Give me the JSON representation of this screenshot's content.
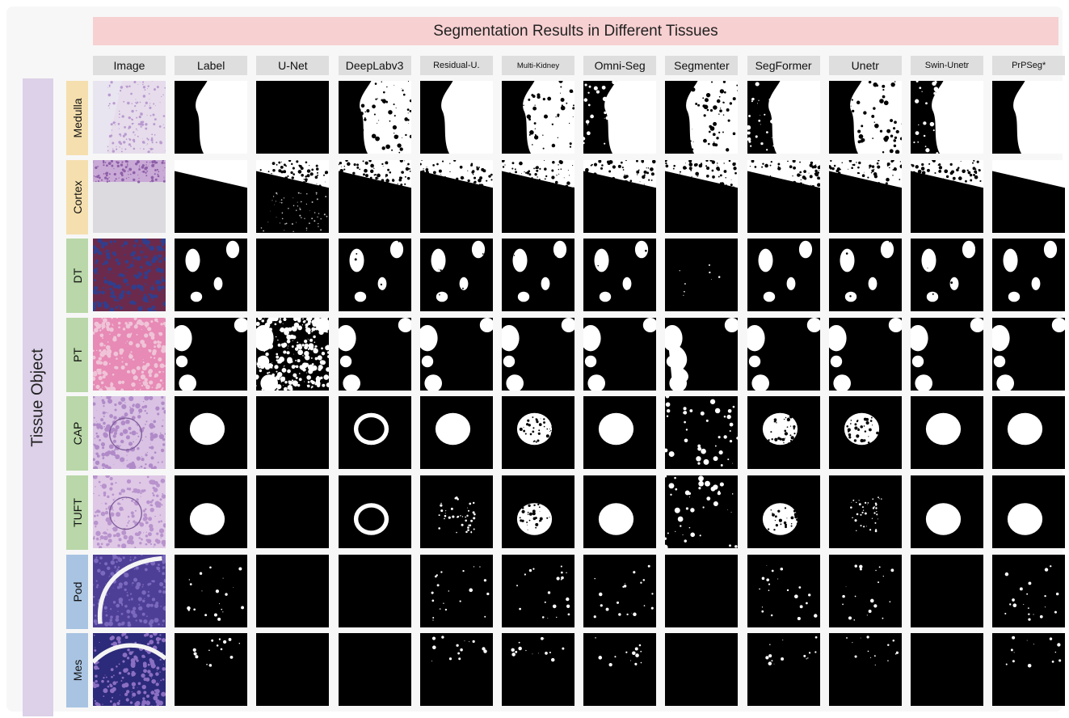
{
  "title": "Segmentation Results in Different Tissues",
  "group_label": "Tissue Object",
  "columns": [
    "Image",
    "Label",
    "U-Net",
    "DeepLabv3",
    "Residual-U.",
    "Multi-Kidney",
    "Omni-Seg",
    "Segmenter",
    "SegFormer",
    "Unetr",
    "Swin-Unetr",
    "PrPSeg*"
  ],
  "rows": [
    {
      "label": "Medulla",
      "color": "#f5dfae"
    },
    {
      "label": "Cortex",
      "color": "#f5dfae"
    },
    {
      "label": "DT",
      "color": "#b9d7a8"
    },
    {
      "label": "PT",
      "color": "#b9d7a8"
    },
    {
      "label": "CAP",
      "color": "#b9d7a8"
    },
    {
      "label": "TUFT",
      "color": "#b9d7a8"
    },
    {
      "label": "Pod",
      "color": "#a9c4e2"
    },
    {
      "label": "Mes",
      "color": "#a9c4e2"
    }
  ],
  "colors": {
    "banner": "#f7d0d1",
    "header": "#dedede",
    "group": "#dcd1e8",
    "mask_fg": "#ffffff",
    "mask_bg": "#000000"
  }
}
